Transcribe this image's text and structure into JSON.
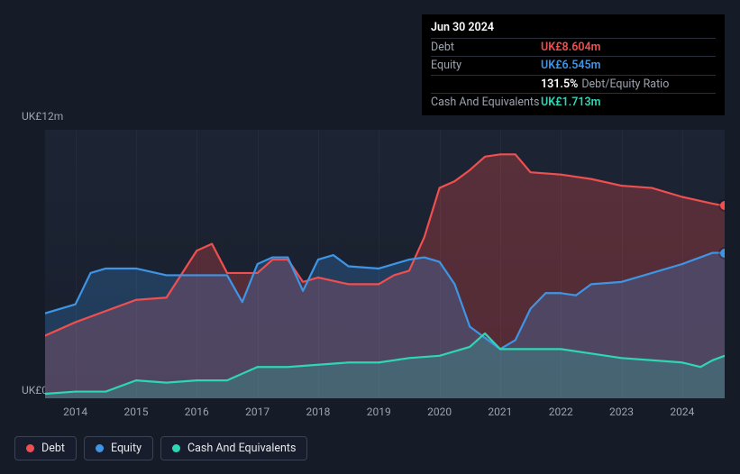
{
  "tooltip": {
    "date": "Jun 30 2024",
    "rows": [
      {
        "label": "Debt",
        "value": "UK£8.604m",
        "color": "#ef4f4f"
      },
      {
        "label": "Equity",
        "value": "UK£6.545m",
        "color": "#3e95e6"
      },
      {
        "label": "",
        "value": "131.5%",
        "extra": "Debt/Equity Ratio",
        "color": "#ffffff"
      },
      {
        "label": "Cash And Equivalents",
        "value": "UK£1.713m",
        "color": "#2fd6b4"
      }
    ]
  },
  "chart": {
    "type": "area-line",
    "background_color": "#151b27",
    "plot_background": "#1c2433",
    "y": {
      "min": 0,
      "max": 12,
      "top_label": "UK£12m",
      "bottom_label": "UK£0"
    },
    "x": {
      "min": 2013.5,
      "max": 2024.7,
      "ticks": [
        2014,
        2015,
        2016,
        2017,
        2018,
        2019,
        2020,
        2021,
        2022,
        2023,
        2024
      ]
    },
    "series": [
      {
        "name": "Debt",
        "label": "Debt",
        "color": "#ef4f4f",
        "fill": "rgba(239,79,79,0.28)",
        "line_width": 2.2,
        "points": [
          [
            2013.5,
            2.8
          ],
          [
            2014.0,
            3.4
          ],
          [
            2014.5,
            3.9
          ],
          [
            2015.0,
            4.4
          ],
          [
            2015.5,
            4.5
          ],
          [
            2016.0,
            6.6
          ],
          [
            2016.25,
            6.9
          ],
          [
            2016.5,
            5.6
          ],
          [
            2017.0,
            5.6
          ],
          [
            2017.25,
            6.2
          ],
          [
            2017.5,
            6.2
          ],
          [
            2017.75,
            5.2
          ],
          [
            2018.0,
            5.4
          ],
          [
            2018.5,
            5.1
          ],
          [
            2019.0,
            5.1
          ],
          [
            2019.25,
            5.5
          ],
          [
            2019.5,
            5.7
          ],
          [
            2019.75,
            7.2
          ],
          [
            2020.0,
            9.4
          ],
          [
            2020.25,
            9.7
          ],
          [
            2020.5,
            10.2
          ],
          [
            2020.75,
            10.8
          ],
          [
            2021.0,
            10.9
          ],
          [
            2021.25,
            10.9
          ],
          [
            2021.5,
            10.1
          ],
          [
            2022.0,
            10.0
          ],
          [
            2022.5,
            9.8
          ],
          [
            2023.0,
            9.5
          ],
          [
            2023.5,
            9.4
          ],
          [
            2024.0,
            9.0
          ],
          [
            2024.5,
            8.7
          ],
          [
            2024.7,
            8.6
          ]
        ]
      },
      {
        "name": "Equity",
        "label": "Equity",
        "color": "#3e95e6",
        "fill": "rgba(62,149,230,0.25)",
        "line_width": 2.2,
        "points": [
          [
            2013.5,
            3.8
          ],
          [
            2014.0,
            4.2
          ],
          [
            2014.25,
            5.6
          ],
          [
            2014.5,
            5.8
          ],
          [
            2015.0,
            5.8
          ],
          [
            2015.5,
            5.5
          ],
          [
            2016.0,
            5.5
          ],
          [
            2016.5,
            5.5
          ],
          [
            2016.75,
            4.3
          ],
          [
            2017.0,
            6.0
          ],
          [
            2017.25,
            6.3
          ],
          [
            2017.5,
            6.3
          ],
          [
            2017.75,
            4.8
          ],
          [
            2018.0,
            6.2
          ],
          [
            2018.25,
            6.4
          ],
          [
            2018.5,
            5.9
          ],
          [
            2019.0,
            5.8
          ],
          [
            2019.5,
            6.2
          ],
          [
            2019.75,
            6.3
          ],
          [
            2020.0,
            6.1
          ],
          [
            2020.25,
            5.1
          ],
          [
            2020.5,
            3.2
          ],
          [
            2020.75,
            2.7
          ],
          [
            2021.0,
            2.2
          ],
          [
            2021.25,
            2.6
          ],
          [
            2021.5,
            4.0
          ],
          [
            2021.75,
            4.7
          ],
          [
            2022.0,
            4.7
          ],
          [
            2022.25,
            4.6
          ],
          [
            2022.5,
            5.1
          ],
          [
            2023.0,
            5.2
          ],
          [
            2023.5,
            5.6
          ],
          [
            2024.0,
            6.0
          ],
          [
            2024.5,
            6.5
          ],
          [
            2024.7,
            6.5
          ]
        ]
      },
      {
        "name": "Cash And Equivalents",
        "label": "Cash And Equivalents",
        "color": "#2fd6b4",
        "fill": "rgba(47,214,180,0.22)",
        "line_width": 2.2,
        "points": [
          [
            2013.5,
            0.2
          ],
          [
            2014.0,
            0.3
          ],
          [
            2014.5,
            0.3
          ],
          [
            2015.0,
            0.8
          ],
          [
            2015.5,
            0.7
          ],
          [
            2016.0,
            0.8
          ],
          [
            2016.5,
            0.8
          ],
          [
            2017.0,
            1.4
          ],
          [
            2017.5,
            1.4
          ],
          [
            2018.0,
            1.5
          ],
          [
            2018.5,
            1.6
          ],
          [
            2019.0,
            1.6
          ],
          [
            2019.5,
            1.8
          ],
          [
            2020.0,
            1.9
          ],
          [
            2020.5,
            2.3
          ],
          [
            2020.75,
            2.9
          ],
          [
            2021.0,
            2.2
          ],
          [
            2021.5,
            2.2
          ],
          [
            2022.0,
            2.2
          ],
          [
            2022.5,
            2.0
          ],
          [
            2023.0,
            1.8
          ],
          [
            2023.5,
            1.7
          ],
          [
            2024.0,
            1.6
          ],
          [
            2024.3,
            1.4
          ],
          [
            2024.5,
            1.7
          ],
          [
            2024.7,
            1.9
          ]
        ]
      }
    ],
    "end_markers": [
      {
        "series": "Debt",
        "x": 2024.7,
        "y": 8.6,
        "color": "#ef4f4f"
      },
      {
        "series": "Equity",
        "x": 2024.7,
        "y": 6.5,
        "color": "#3e95e6"
      }
    ]
  },
  "legend": {
    "items": [
      {
        "label": "Debt",
        "color": "#ef4f4f"
      },
      {
        "label": "Equity",
        "color": "#3e95e6"
      },
      {
        "label": "Cash And Equivalents",
        "color": "#2fd6b4"
      }
    ]
  }
}
